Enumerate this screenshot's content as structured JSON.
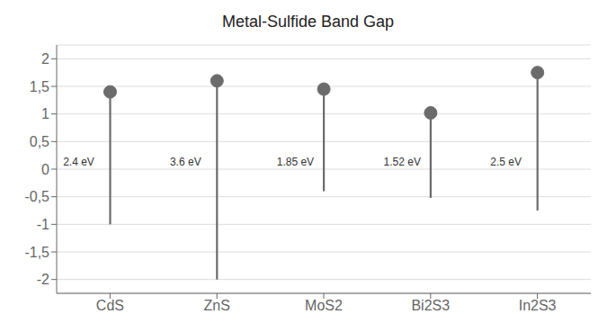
{
  "chart_data": {
    "type": "lollipop",
    "title": "Metal-Sulfide Band Gap",
    "categories": [
      "CdS",
      "ZnS",
      "MoS2",
      "Bi2S3",
      "In2S3"
    ],
    "values": [
      1.4,
      1.6,
      1.45,
      1.02,
      1.75
    ],
    "low": [
      -1.0,
      -2.0,
      -0.4,
      -0.52,
      -0.75
    ],
    "annotations": [
      "2.4 eV",
      "3.6 eV",
      "1.85 eV",
      "1.52 eV",
      "2.5 eV"
    ],
    "color": "#6b6b6b",
    "ylim": [
      -2.25,
      2.25
    ],
    "yticks": [
      -2,
      {
        "value": -1.5,
        "label": "-1,5"
      },
      -1,
      {
        "value": -0.5,
        "label": "-0,5"
      },
      0,
      {
        "value": 0.5,
        "label": "0,5"
      },
      1,
      {
        "value": 1.5,
        "label": "1,5"
      },
      2
    ],
    "grid": true
  }
}
